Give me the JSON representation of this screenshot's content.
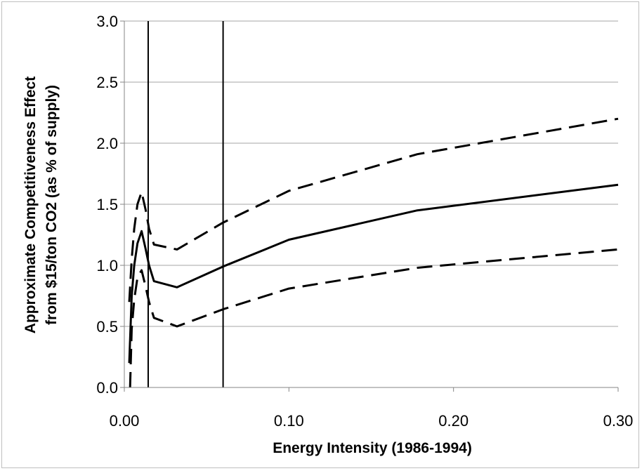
{
  "chart_data": {
    "type": "line",
    "title": "",
    "xlabel": "Energy Intensity (1986-1994)",
    "ylabel_lines": [
      "Approximate Competitiveness Effect",
      "from $15/ton CO2 (as % of supply)"
    ],
    "xlim": [
      0,
      0.3
    ],
    "ylim": [
      0,
      3.0
    ],
    "x_ticks": [
      0.0,
      0.1,
      0.2,
      0.3
    ],
    "x_tick_labels": [
      "0.00",
      "0.10",
      "0.20",
      "0.30"
    ],
    "y_ticks": [
      0.0,
      0.5,
      1.0,
      1.5,
      2.0,
      2.5,
      3.0
    ],
    "y_tick_labels": [
      "0.0",
      "0.5",
      "1.0",
      "1.5",
      "2.0",
      "2.5",
      "3.0"
    ],
    "grid": "horizontal",
    "legend": "none",
    "vertical_lines_x": [
      0.0145,
      0.06
    ],
    "series": [
      {
        "style": "dashed",
        "x": [
          0.003,
          0.0045,
          0.006,
          0.008,
          0.0105,
          0.013,
          0.015,
          0.018,
          0.032,
          0.06,
          0.1,
          0.178,
          0.3
        ],
        "y": [
          0.7,
          1.05,
          1.3,
          1.5,
          1.6,
          1.45,
          1.3,
          1.17,
          1.13,
          1.35,
          1.61,
          1.91,
          2.2
        ]
      },
      {
        "style": "solid",
        "x": [
          0.003,
          0.0045,
          0.006,
          0.008,
          0.0105,
          0.013,
          0.015,
          0.018,
          0.032,
          0.06,
          0.1,
          0.178,
          0.3
        ],
        "y": [
          0.2,
          0.75,
          1.0,
          1.18,
          1.28,
          1.13,
          1.0,
          0.87,
          0.82,
          0.99,
          1.21,
          1.45,
          1.66
        ]
      },
      {
        "style": "dashed",
        "x": [
          0.0035,
          0.0045,
          0.006,
          0.008,
          0.0105,
          0.013,
          0.015,
          0.018,
          0.032,
          0.06,
          0.1,
          0.178,
          0.3
        ],
        "y": [
          0.0,
          0.48,
          0.72,
          0.9,
          0.96,
          0.82,
          0.7,
          0.57,
          0.5,
          0.64,
          0.81,
          0.98,
          1.13
        ]
      }
    ],
    "colors": {
      "line": "#000000",
      "grid": "#a6a6a6",
      "axis": "#868686",
      "border": "#bfbfbf"
    }
  }
}
